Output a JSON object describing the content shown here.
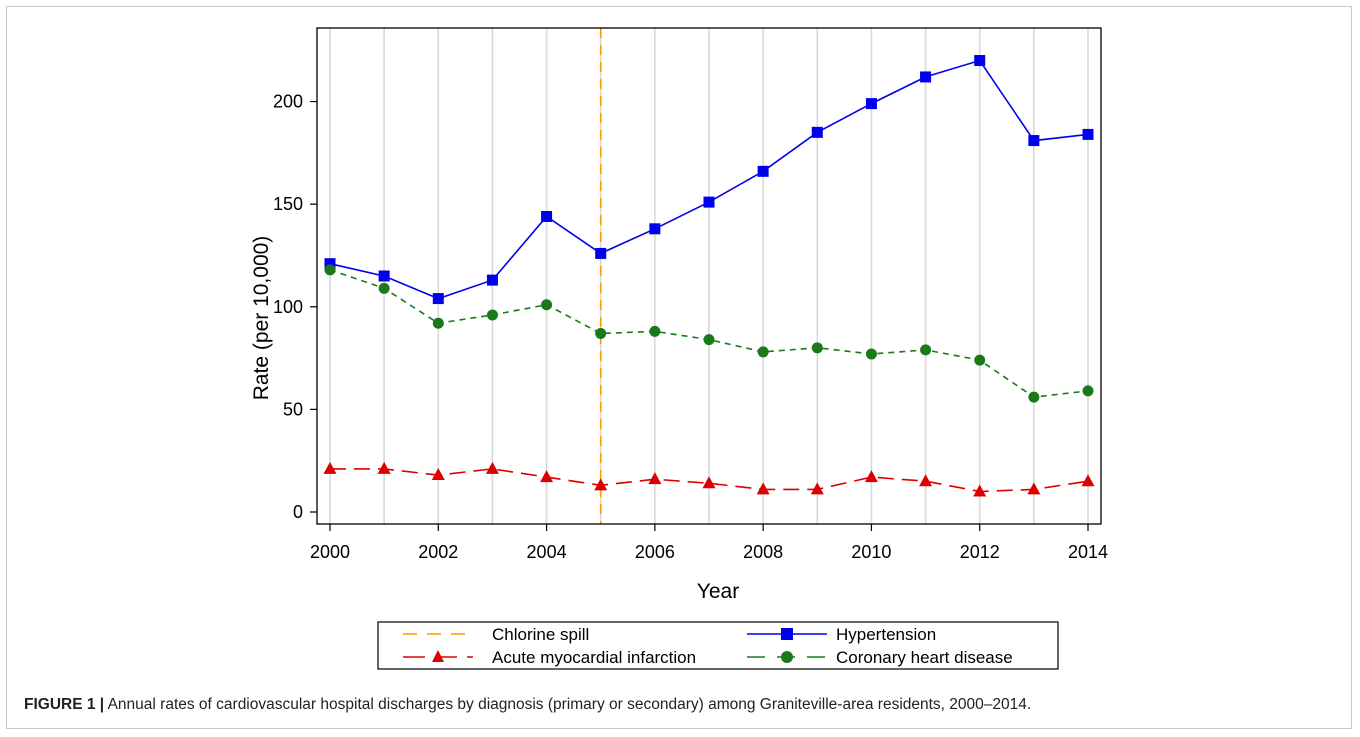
{
  "chart_data": {
    "type": "line",
    "xlabel": "Year",
    "ylabel": "Rate (per 10,000)",
    "xlim": [
      2000,
      2014
    ],
    "ylim": [
      0,
      230
    ],
    "x_ticks": [
      "2000",
      "2002",
      "2004",
      "2006",
      "2008",
      "2010",
      "2012",
      "2014"
    ],
    "y_ticks": [
      "0",
      "50",
      "100",
      "150",
      "200"
    ],
    "x_tick_values": [
      2000,
      2002,
      2004,
      2006,
      2008,
      2010,
      2012,
      2014
    ],
    "y_tick_values": [
      0,
      50,
      100,
      150,
      200
    ],
    "grid": "vertical lines at each year",
    "x": [
      2000,
      2001,
      2002,
      2003,
      2004,
      2005,
      2006,
      2007,
      2008,
      2009,
      2010,
      2011,
      2012,
      2013,
      2014
    ],
    "series": [
      {
        "name": "Hypertension",
        "color": "#0000ee",
        "marker": "square",
        "dash": "solid",
        "values": [
          121,
          115,
          104,
          113,
          144,
          126,
          138,
          151,
          166,
          185,
          199,
          212,
          220,
          181,
          184
        ]
      },
      {
        "name": "Coronary heart disease",
        "color": "#1a7a1a",
        "marker": "circle",
        "dash": "short-dash",
        "values": [
          118,
          109,
          92,
          96,
          101,
          87,
          88,
          84,
          78,
          80,
          77,
          79,
          74,
          56,
          59
        ]
      },
      {
        "name": "Acute myocardial infarction",
        "color": "#dd0000",
        "marker": "triangle",
        "dash": "long-dash",
        "values": [
          21,
          21,
          18,
          21,
          17,
          13,
          16,
          14,
          11,
          11,
          17,
          15,
          10,
          11,
          15
        ]
      }
    ],
    "reference_line": {
      "name": "Chlorine spill",
      "x": 2005,
      "color": "#ff9900",
      "dash": "dashed"
    },
    "legend": {
      "position": "bottom-center",
      "entries": [
        "Chlorine spill",
        "Hypertension",
        "Acute myocardial infarction",
        "Coronary heart disease"
      ]
    }
  },
  "caption": {
    "label": "FIGURE 1 |",
    "text": " Annual rates of cardiovascular hospital discharges by diagnosis (primary or secondary) among Graniteville-area residents, 2000–2014."
  }
}
